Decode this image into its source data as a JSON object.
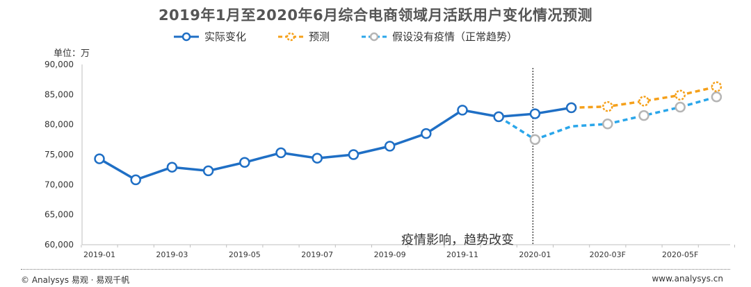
{
  "page": {
    "unit_label": "单位：万",
    "annotation": "疫情影响，趋势改变",
    "footer_left": "© Analysys 易观 · 易观千帆",
    "footer_right": "www.analysys.cn"
  },
  "colors": {
    "actual": "#1f6fc5",
    "forecast": "#f5a01a",
    "hypothetical": "#2aa6ea",
    "hypothetical_marker": "#b5b5b5"
  },
  "chart_data": {
    "type": "line",
    "title": "2019年1月至2020年6月综合电商领域月活跃用户变化情况预测",
    "xlabel": "",
    "ylabel": "单位：万",
    "ylim": [
      60000,
      90000
    ],
    "yticks": [
      60000,
      65000,
      70000,
      75000,
      80000,
      85000,
      90000
    ],
    "ytick_labels": [
      "60,000",
      "65,000",
      "70,000",
      "75,000",
      "80,000",
      "85,000",
      "90,000"
    ],
    "categories": [
      "2019-01",
      "2019-02",
      "2019-03",
      "2019-04",
      "2019-05",
      "2019-06",
      "2019-07",
      "2019-08",
      "2019-09",
      "2019-10",
      "2019-11",
      "2019-12",
      "2020-01",
      "2020-02F",
      "2020-03F",
      "2020-04F",
      "2020-05F",
      "2020-06F"
    ],
    "xtick_labels": [
      "2019-01",
      "",
      "2019-03",
      "",
      "2019-05",
      "",
      "2019-07",
      "",
      "2019-09",
      "",
      "2019-11",
      "",
      "2020-01",
      "",
      "2020-03F",
      "",
      "2020-05F",
      ""
    ],
    "legend_position": "top",
    "grid": false,
    "series": [
      {
        "name": "实际变化",
        "style": "solid",
        "values": [
          74300,
          70800,
          72900,
          72300,
          73700,
          75300,
          74400,
          75000,
          76400,
          78500,
          82400,
          81300,
          81800,
          82800,
          null,
          null,
          null,
          null
        ]
      },
      {
        "name": "预测",
        "style": "dashed",
        "values": [
          null,
          null,
          null,
          null,
          null,
          null,
          null,
          null,
          null,
          null,
          null,
          null,
          null,
          82800,
          83000,
          83900,
          84900,
          86300
        ]
      },
      {
        "name": "假设没有疫情（正常趋势）",
        "style": "dashed",
        "values": [
          null,
          null,
          null,
          null,
          null,
          null,
          null,
          null,
          null,
          null,
          null,
          81300,
          77500,
          79700,
          80100,
          81500,
          82900,
          84600
        ]
      }
    ],
    "divider_at": "2020-01"
  }
}
